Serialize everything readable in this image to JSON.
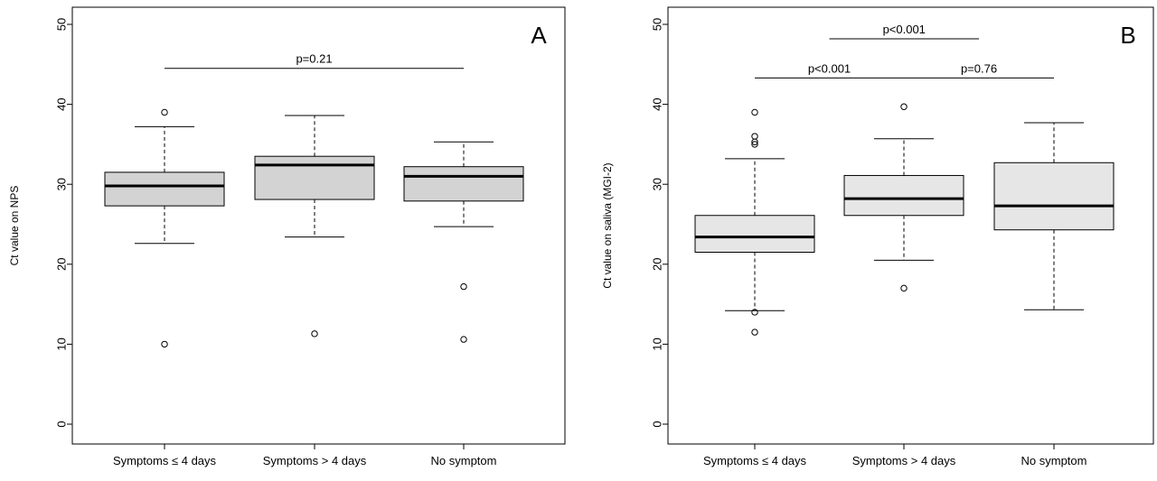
{
  "chart_data": [
    {
      "type": "boxplot",
      "panel_label": "A",
      "ylabel": "Ct value on NPS",
      "ylim": [
        0,
        50
      ],
      "yticks": [
        0,
        10,
        20,
        30,
        40,
        50
      ],
      "categories": [
        "Symptoms  ≤ 4 days",
        "Symptoms > 4 days",
        "No symptom"
      ],
      "box_fill": "#d3d3d3",
      "boxes": [
        {
          "whisker_low": 22.6,
          "q1": 27.3,
          "median": 29.8,
          "q3": 31.5,
          "whisker_high": 37.2,
          "outliers": [
            39.0,
            10.0
          ]
        },
        {
          "whisker_low": 23.4,
          "q1": 28.1,
          "median": 32.4,
          "q3": 33.5,
          "whisker_high": 38.6,
          "outliers": [
            11.3
          ]
        },
        {
          "whisker_low": 24.7,
          "q1": 27.9,
          "median": 31.0,
          "q3": 32.2,
          "whisker_high": 35.3,
          "outliers": [
            17.2,
            10.6
          ]
        }
      ],
      "comparisons": [
        {
          "from": 0,
          "to": 2,
          "y": 44.5,
          "label": "p=0.21"
        }
      ]
    },
    {
      "type": "boxplot",
      "panel_label": "B",
      "ylabel": "Ct value on saliva (MGI-2)",
      "ylim": [
        0,
        50
      ],
      "yticks": [
        0,
        10,
        20,
        30,
        40,
        50
      ],
      "categories": [
        "Symptoms  ≤ 4 days",
        "Symptoms > 4 days",
        "No symptom"
      ],
      "box_fill": "#e6e6e6",
      "boxes": [
        {
          "whisker_low": 14.2,
          "q1": 21.5,
          "median": 23.4,
          "q3": 26.1,
          "whisker_high": 33.2,
          "outliers": [
            39.0,
            36.0,
            35.3,
            35.0,
            14.0,
            11.5
          ]
        },
        {
          "whisker_low": 20.5,
          "q1": 26.1,
          "median": 28.2,
          "q3": 31.1,
          "whisker_high": 35.7,
          "outliers": [
            39.7,
            17.0
          ]
        },
        {
          "whisker_low": 14.3,
          "q1": 24.3,
          "median": 27.3,
          "q3": 32.7,
          "whisker_high": 37.7,
          "outliers": []
        }
      ],
      "comparisons": [
        {
          "from": 0,
          "to": 1,
          "y": 43.3,
          "label": "p<0.001"
        },
        {
          "from": 1,
          "to": 2,
          "y": 43.3,
          "label": "p=0.76"
        },
        {
          "from": 0.5,
          "to": 1.5,
          "y": 48.2,
          "label": "p<0.001"
        }
      ]
    }
  ]
}
